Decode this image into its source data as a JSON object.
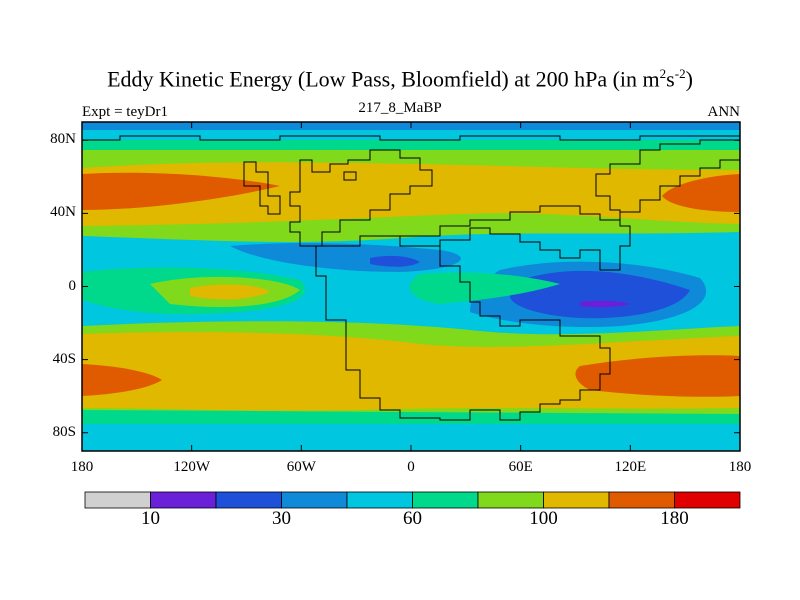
{
  "header": {
    "title_main": "Eddy Kinetic Energy (Low Pass, Bloomfield) at 200 hPa (in m",
    "title_sup1": "2",
    "title_mid": "s",
    "title_sup2": "-2",
    "title_end": ")",
    "left_label": "Expt = teyDr1",
    "center_label": "217_8_MaBP",
    "right_label": "ANN"
  },
  "axes": {
    "x_ticks": [
      "180",
      "120W",
      "60W",
      "0",
      "60E",
      "120E",
      "180"
    ],
    "y_ticks": [
      "80N",
      "40N",
      "0",
      "40S",
      "80S"
    ]
  },
  "colorbar": {
    "colors": [
      "#d0d0d0",
      "#6a1fd9",
      "#1e50d9",
      "#0f8ad9",
      "#00c6e0",
      "#00d98c",
      "#80d91a",
      "#e0b800",
      "#e05a00",
      "#e00000"
    ],
    "labels": [
      "10",
      "30",
      "60",
      "100",
      "180"
    ]
  },
  "chart_data": {
    "type": "heatmap",
    "projection": "cylindrical-equidistant",
    "x_range": [
      -180,
      180
    ],
    "y_range": [
      -90,
      90
    ],
    "x_ticks": [
      -180,
      -120,
      -60,
      0,
      60,
      120,
      180
    ],
    "y_ticks": [
      80,
      40,
      0,
      -40,
      -80
    ],
    "levels": [
      10,
      20,
      30,
      45,
      60,
      80,
      100,
      140,
      180
    ],
    "level_labels": [
      "10",
      "30",
      "60",
      "100",
      "180"
    ],
    "grid": false,
    "legend": "bottom"
  }
}
